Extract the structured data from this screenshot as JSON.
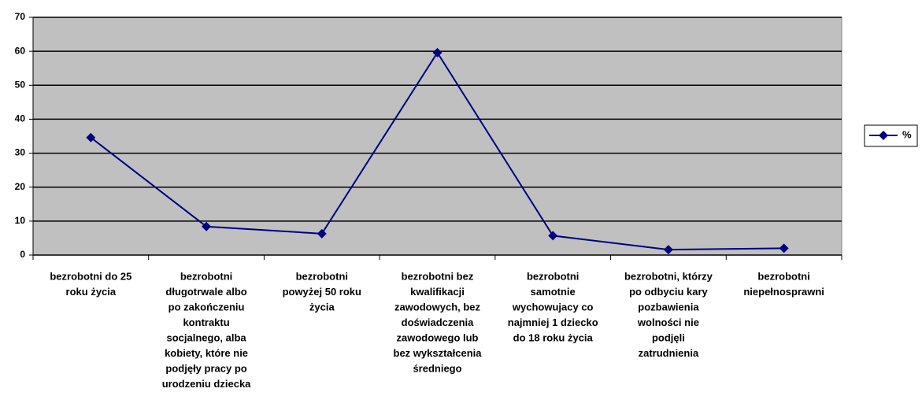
{
  "chart_data": {
    "type": "line",
    "categories": [
      [
        "bezrobotni do 25",
        "roku życia"
      ],
      [
        "bezrobotni",
        "długotrwale albo",
        "po zakończeniu",
        "kontraktu",
        "socjalnego, alba",
        "kobiety, które nie",
        "podjęły pracy po",
        "urodzeniu dziecka"
      ],
      [
        "bezrobotni",
        "powyżej 50 roku",
        "życia"
      ],
      [
        "bezrobotni bez",
        "kwalifikacji",
        "zawodowych, bez",
        "doświadczenia",
        "zawodowego lub",
        "bez wykształcenia",
        "średniego"
      ],
      [
        "bezrobotni",
        "samotnie",
        "wychowujacy co",
        "najmniej 1 dziecko",
        "do 18 roku życia"
      ],
      [
        "bezrobotni, którzy",
        "po odbyciu kary",
        "pozbawienia",
        "wolności nie",
        "podjęli",
        "zatrudnienia"
      ],
      [
        "bezrobotni",
        "niepełnosprawni"
      ]
    ],
    "series": [
      {
        "name": "%",
        "color": "#000080",
        "values": [
          34.6,
          8.4,
          6.3,
          59.6,
          5.7,
          1.6,
          2.0
        ]
      }
    ],
    "ylim": [
      0,
      70
    ],
    "yticks": [
      0,
      10,
      20,
      30,
      40,
      50,
      60,
      70
    ],
    "grid": true,
    "plot_background": "#c0c0c0",
    "legend": "right"
  }
}
